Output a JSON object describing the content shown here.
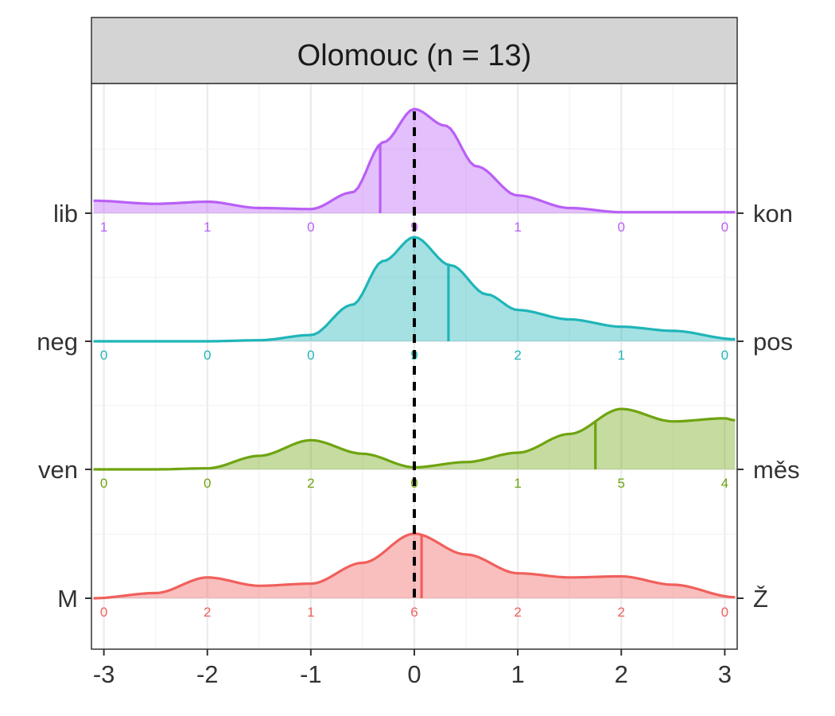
{
  "chart_data": {
    "type": "ridgeline-density",
    "panel_title": "Olomouc (n = 13)",
    "x_ticks": [
      -3,
      -2,
      -1,
      0,
      1,
      2,
      3
    ],
    "xlim": [
      -3.12,
      3.12
    ],
    "reference_line_x": 0,
    "count_positions": [
      -3,
      -2,
      -1,
      0,
      1,
      2,
      3
    ],
    "rows": [
      {
        "left_label": "lib",
        "right_label": "kon",
        "color": "#b95ff5",
        "mean": -0.33,
        "counts": [
          "1",
          "1",
          "0",
          "9",
          "1",
          "0",
          "0"
        ],
        "density": [
          [
            -3.1,
            0.12
          ],
          [
            -2.5,
            0.09
          ],
          [
            -2,
            0.11
          ],
          [
            -1.5,
            0.05
          ],
          [
            -1,
            0.04
          ],
          [
            -0.6,
            0.2
          ],
          [
            -0.3,
            0.68
          ],
          [
            0,
            1.0
          ],
          [
            0.3,
            0.84
          ],
          [
            0.6,
            0.45
          ],
          [
            1,
            0.17
          ],
          [
            1.5,
            0.05
          ],
          [
            2,
            0.01
          ],
          [
            3.1,
            0.01
          ]
        ]
      },
      {
        "left_label": "neg",
        "right_label": "pos",
        "color": "#1fb5b8",
        "mean": 0.33,
        "counts": [
          "0",
          "0",
          "0",
          "9",
          "2",
          "1",
          "0"
        ],
        "density": [
          [
            -3.1,
            0
          ],
          [
            -2,
            0
          ],
          [
            -1.5,
            0.01
          ],
          [
            -1,
            0.06
          ],
          [
            -0.6,
            0.35
          ],
          [
            -0.3,
            0.77
          ],
          [
            0,
            1.0
          ],
          [
            0.35,
            0.73
          ],
          [
            0.7,
            0.45
          ],
          [
            1,
            0.3
          ],
          [
            1.5,
            0.21
          ],
          [
            2,
            0.14
          ],
          [
            2.5,
            0.1
          ],
          [
            3.1,
            0.02
          ]
        ]
      },
      {
        "left_label": "ven",
        "right_label": "měs",
        "color": "#6ea410",
        "mean": 1.75,
        "counts": [
          "0",
          "0",
          "2",
          "0",
          "1",
          "5",
          "4"
        ],
        "density": [
          [
            -3.1,
            0
          ],
          [
            -2.5,
            0
          ],
          [
            -2,
            0.01
          ],
          [
            -1.5,
            0.13
          ],
          [
            -1,
            0.28
          ],
          [
            -0.5,
            0.15
          ],
          [
            0,
            0.02
          ],
          [
            0.5,
            0.07
          ],
          [
            1,
            0.16
          ],
          [
            1.5,
            0.34
          ],
          [
            2,
            0.58
          ],
          [
            2.5,
            0.46
          ],
          [
            3,
            0.49
          ],
          [
            3.1,
            0.47
          ]
        ]
      },
      {
        "left_label": "M",
        "right_label": "Ž",
        "color": "#f0605c",
        "mean": 0.07,
        "counts": [
          "0",
          "2",
          "1",
          "6",
          "2",
          "2",
          "0"
        ],
        "density": [
          [
            -3.1,
            0
          ],
          [
            -2.5,
            0.05
          ],
          [
            -2,
            0.2
          ],
          [
            -1.5,
            0.12
          ],
          [
            -1,
            0.14
          ],
          [
            -0.5,
            0.34
          ],
          [
            0,
            0.62
          ],
          [
            0.5,
            0.42
          ],
          [
            1,
            0.24
          ],
          [
            1.5,
            0.2
          ],
          [
            2,
            0.21
          ],
          [
            2.5,
            0.13
          ],
          [
            3.1,
            0.01
          ]
        ]
      }
    ]
  }
}
